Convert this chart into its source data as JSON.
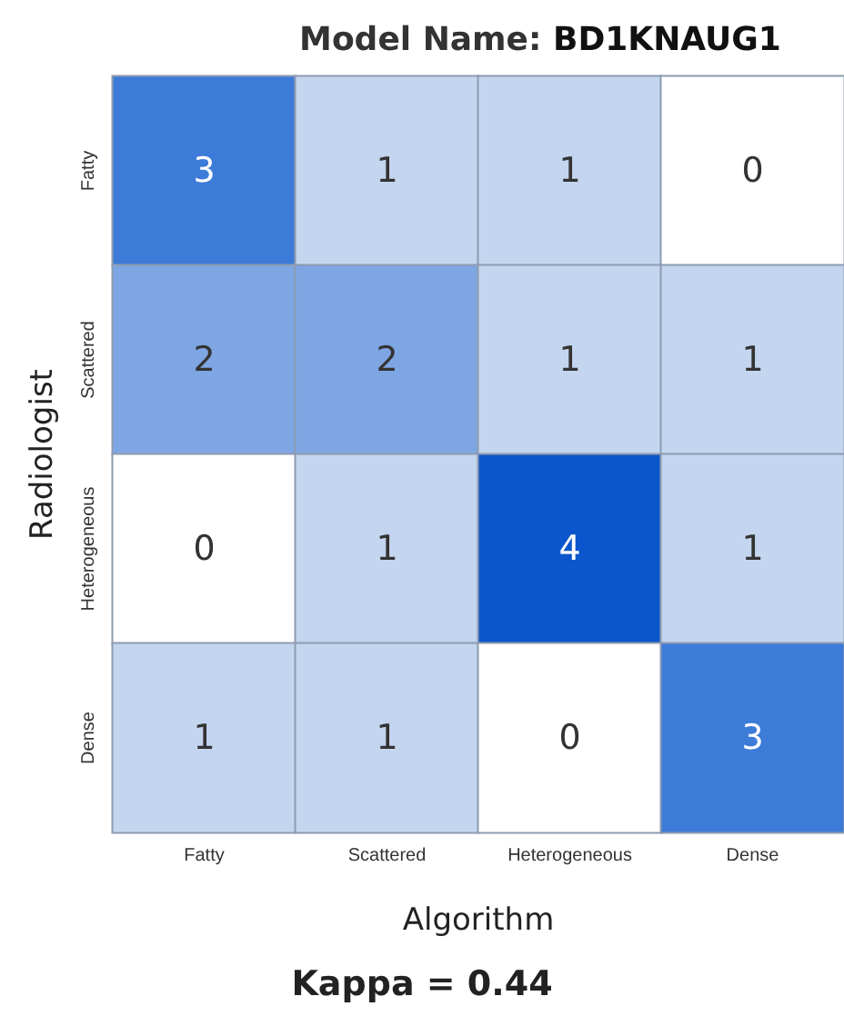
{
  "chart_data": {
    "type": "heatmap",
    "title": "Model Name: BD1KNAUG1",
    "xlabel": "Algorithm",
    "ylabel": "Radiologist",
    "categories": [
      "Fatty",
      "Scattered",
      "Heterogeneous",
      "Dense"
    ],
    "y_categories": [
      "Fatty",
      "Scattered",
      "Heterogeneous",
      "Dense"
    ],
    "cells": [
      [
        3,
        1,
        1,
        0
      ],
      [
        2,
        2,
        1,
        1
      ],
      [
        0,
        1,
        4,
        1
      ],
      [
        1,
        1,
        0,
        3
      ]
    ],
    "data_labels": true,
    "annotations": [
      "Kappa = 0.44"
    ]
  }
}
